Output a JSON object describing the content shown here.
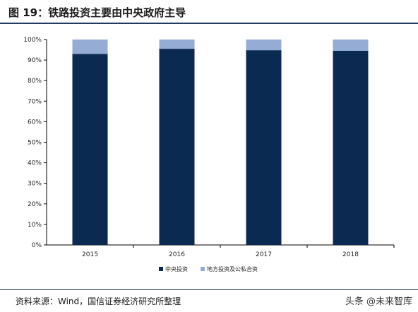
{
  "header": {
    "title": "图 19：铁路投资主要由中央政府主导"
  },
  "footer": {
    "source": "资料来源：Wind，国信证券经济研究所整理",
    "watermark": "头条 @未来智库"
  },
  "chart_data": {
    "type": "bar",
    "stacked": true,
    "title": "",
    "xlabel": "",
    "ylabel": "",
    "categories": [
      "2015",
      "2016",
      "2017",
      "2018"
    ],
    "series": [
      {
        "name": "中央投资",
        "values": [
          93,
          95.5,
          94.8,
          94.5
        ],
        "color": "#0b2a52"
      },
      {
        "name": "地方投资及公私合资",
        "values": [
          7,
          4.5,
          5.2,
          5.5
        ],
        "color": "#95acd5"
      }
    ],
    "ylim": [
      0,
      100
    ],
    "yticks": [
      "0%",
      "10%",
      "20%",
      "30%",
      "40%",
      "50%",
      "60%",
      "70%",
      "80%",
      "90%",
      "100%"
    ],
    "grid": false,
    "legend_position": "bottom"
  }
}
